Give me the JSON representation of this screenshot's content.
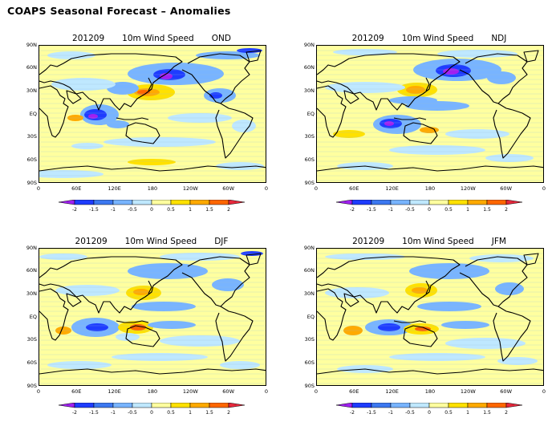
{
  "page_title": "COAPS Seasonal Forecast – Anomalies",
  "panels": [
    {
      "id": "ond",
      "date": "201209",
      "variable": "10m Wind Speed",
      "season": "OND"
    },
    {
      "id": "ndj",
      "date": "201209",
      "variable": "10m Wind Speed",
      "season": "NDJ"
    },
    {
      "id": "djf",
      "date": "201209",
      "variable": "10m Wind Speed",
      "season": "DJF"
    },
    {
      "id": "jfm",
      "date": "201209",
      "variable": "10m Wind Speed",
      "season": "JFM"
    }
  ],
  "latitude_labels": [
    "90N",
    "60N",
    "30N",
    "EQ",
    "30S",
    "60S",
    "90S"
  ],
  "longitude_labels": [
    "0",
    "60E",
    "120E",
    "180",
    "120W",
    "60W",
    "0"
  ],
  "colorbar": {
    "tick_labels": [
      "-2",
      "-1.5",
      "-1",
      "-0.5",
      "0",
      "0.5",
      "1",
      "1.5",
      "2"
    ],
    "colors": {
      "below_-2": "#a020f0",
      "-2_to_-1.5": "#1e3cff",
      "-1.5_to_-1": "#3c78f0",
      "-1_to_-0.5": "#78b4ff",
      "-0.5_to_0": "#bfe8ff",
      "0_to_0.5": "#ffff9f",
      "0.5_to_1": "#ffe100",
      "1_to_1.5": "#ffaa00",
      "1.5_to_2": "#ff6600",
      "above_2": "#e6283c"
    }
  }
}
